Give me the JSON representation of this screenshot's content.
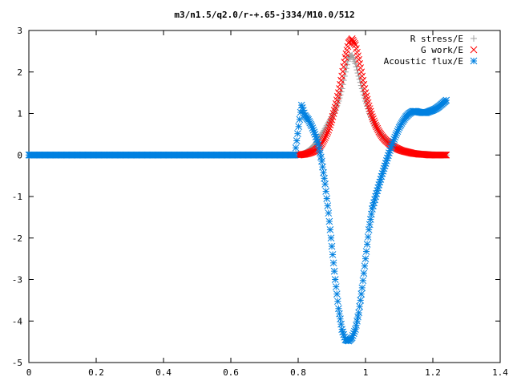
{
  "chart_data": {
    "type": "scatter",
    "title": "m3/n1.5/q2.0/r-+.65-j334/M10.0/512",
    "xlabel": "",
    "ylabel": "",
    "xlim": [
      0,
      1.4
    ],
    "ylim": [
      -5,
      3
    ],
    "xticks": [
      0,
      0.2,
      0.4,
      0.6,
      0.8,
      1,
      1.2,
      1.4
    ],
    "xtick_labels": [
      "0",
      "0.2",
      "0.4",
      "0.6",
      "0.8",
      "1",
      "1.2",
      "1.4"
    ],
    "yticks": [
      -5,
      -4,
      -3,
      -2,
      -1,
      0,
      1,
      2,
      3
    ],
    "ytick_labels": [
      "-5",
      "-4",
      "-3",
      "-2",
      "-1",
      "0",
      "1",
      "2",
      "3"
    ],
    "grid": false,
    "legend_position": "top-right",
    "series": [
      {
        "name": "R stress/E",
        "marker": "plus",
        "color": "#a0a0a0",
        "x": [
          0.0,
          0.4,
          0.8,
          0.81,
          0.82,
          0.83,
          0.84,
          0.85,
          0.86,
          0.87,
          0.88,
          0.89,
          0.9,
          0.91,
          0.92,
          0.93,
          0.94,
          0.95,
          0.96,
          0.97,
          0.98,
          0.99,
          1.0,
          1.01,
          1.02,
          1.03,
          1.04,
          1.05,
          1.06,
          1.07,
          1.08,
          1.09,
          1.1,
          1.12,
          1.14,
          1.16,
          1.18,
          1.2,
          1.22,
          1.24
        ],
        "y": [
          0.0,
          0.0,
          0.0,
          0.01,
          0.05,
          0.1,
          0.17,
          0.26,
          0.38,
          0.5,
          0.63,
          0.78,
          0.92,
          1.08,
          1.3,
          1.6,
          2.0,
          2.35,
          2.4,
          2.2,
          1.9,
          1.6,
          1.3,
          1.05,
          0.85,
          0.7,
          0.55,
          0.45,
          0.36,
          0.28,
          0.22,
          0.17,
          0.13,
          0.08,
          0.05,
          0.03,
          0.02,
          0.01,
          0.0,
          0.0
        ]
      },
      {
        "name": "G work/E",
        "marker": "cross",
        "color": "#ff0000",
        "x": [
          0.8,
          0.81,
          0.82,
          0.83,
          0.84,
          0.85,
          0.86,
          0.87,
          0.88,
          0.89,
          0.9,
          0.91,
          0.92,
          0.93,
          0.94,
          0.95,
          0.96,
          0.97,
          0.98,
          0.99,
          1.0,
          1.01,
          1.02,
          1.03,
          1.04,
          1.05,
          1.06,
          1.07,
          1.08,
          1.09,
          1.1,
          1.11,
          1.12,
          1.13,
          1.14,
          1.15,
          1.16,
          1.17,
          1.18,
          1.19,
          1.2,
          1.21,
          1.22,
          1.23,
          1.24
        ],
        "y": [
          0.0,
          0.01,
          0.02,
          0.04,
          0.07,
          0.11,
          0.17,
          0.27,
          0.42,
          0.6,
          0.85,
          1.15,
          1.5,
          1.9,
          2.35,
          2.7,
          2.8,
          2.65,
          2.3,
          1.9,
          1.5,
          1.18,
          0.92,
          0.72,
          0.56,
          0.44,
          0.35,
          0.28,
          0.22,
          0.17,
          0.13,
          0.1,
          0.08,
          0.06,
          0.04,
          0.03,
          0.02,
          0.015,
          0.01,
          0.0,
          0.0,
          0.0,
          0.0,
          0.0,
          0.0
        ]
      },
      {
        "name": "Acoustic flux/E",
        "marker": "star",
        "color": "#0080e0",
        "x": [
          0.0,
          0.4,
          0.79,
          0.81,
          0.82,
          0.83,
          0.84,
          0.85,
          0.86,
          0.87,
          0.88,
          0.89,
          0.9,
          0.91,
          0.92,
          0.93,
          0.94,
          0.95,
          0.96,
          0.97,
          0.98,
          0.99,
          1.0,
          1.01,
          1.02,
          1.03,
          1.04,
          1.05,
          1.06,
          1.07,
          1.08,
          1.09,
          1.1,
          1.11,
          1.12,
          1.13,
          1.14,
          1.15,
          1.16,
          1.17,
          1.18,
          1.19,
          1.2,
          1.21,
          1.22,
          1.23,
          1.24
        ],
        "y": [
          0.0,
          0.0,
          0.0,
          1.2,
          0.95,
          0.85,
          0.7,
          0.5,
          0.25,
          -0.15,
          -0.7,
          -1.4,
          -2.2,
          -3.0,
          -3.7,
          -4.2,
          -4.45,
          -4.48,
          -4.4,
          -4.2,
          -3.8,
          -3.2,
          -2.5,
          -1.8,
          -1.3,
          -1.0,
          -0.72,
          -0.45,
          -0.2,
          0.05,
          0.28,
          0.48,
          0.66,
          0.8,
          0.92,
          1.0,
          1.05,
          1.05,
          1.03,
          1.02,
          1.02,
          1.05,
          1.08,
          1.12,
          1.18,
          1.25,
          1.32
        ]
      }
    ]
  }
}
